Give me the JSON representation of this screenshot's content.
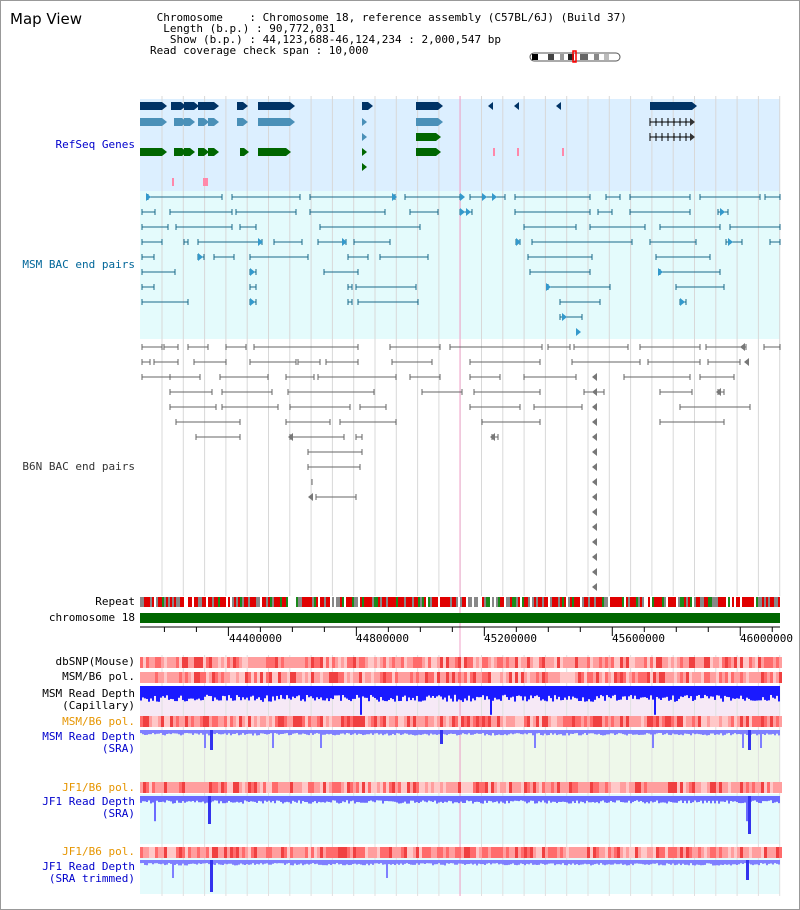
{
  "title": "Map View",
  "info": {
    "lines": [
      " Chromosome    : Chromosome 18, reference assembly (C57BL/6J) (Build 37)",
      "  Length (b.p.) : 90,772,031",
      "   Show (b.p.) : 44,123,688-46,124,234 : 2,000,547 bp",
      "Read coverage check span : 10,000"
    ]
  },
  "tracks": {
    "refseq": "RefSeq Genes",
    "msm_bac": "MSM BAC end pairs",
    "b6n_bac": "B6N BAC end pairs",
    "repeat": "Repeat",
    "chromosome": "chromosome 18",
    "dbsnp": "dbSNP(Mouse)",
    "msm_b6_pol_1": "MSM/B6 pol.",
    "msm_read_depth_cap_1": "MSM Read Depth",
    "msm_read_depth_cap_2": "(Capillary)",
    "msm_b6_pol_2": "MSM/B6 pol.",
    "msm_read_depth_sra_1": "MSM Read Depth",
    "msm_read_depth_sra_2": "(SRA)",
    "jf1_b6_pol_1": "JF1/B6 pol.",
    "jf1_read_depth_sra_1": "JF1 Read Depth",
    "jf1_read_depth_sra_2": "(SRA)",
    "jf1_b6_pol_2": "JF1/B6 pol.",
    "jf1_read_depth_trim_1": "JF1 Read Depth",
    "jf1_read_depth_trim_2": "(SRA trimmed)"
  },
  "axis": {
    "ticks": [
      "44400000",
      "44800000",
      "45200000",
      "45600000",
      "46000000"
    ],
    "tick_values": [
      44400000,
      44800000,
      45200000,
      45600000,
      46000000
    ],
    "range": [
      44123688,
      46124234
    ]
  },
  "colors": {
    "refseq_label": "#0000cc",
    "msm_label": "#006699",
    "b6n_label": "#333333",
    "pol_orange": "#e69500",
    "depth_blue": "#0000cc",
    "gene_dark": "#003366",
    "gene_mid": "#4a90b8",
    "gene_green": "#006600",
    "chrom_green": "#006600"
  }
}
